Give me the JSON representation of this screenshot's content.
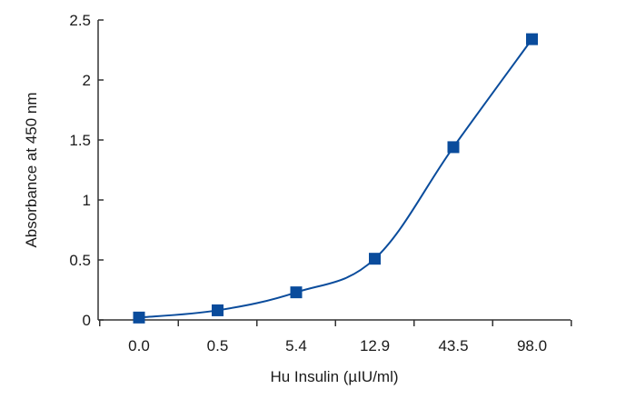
{
  "chart_data": {
    "type": "line",
    "title": "",
    "xlabel": "Hu Insulin (µIU/ml)",
    "ylabel": "Absorbance at 450 nm",
    "categories": [
      "0.0",
      "0.5",
      "5.4",
      "12.9",
      "43.5",
      "98.0"
    ],
    "series": [
      {
        "values": [
          0.02,
          0.08,
          0.23,
          0.51,
          1.44,
          2.34
        ]
      }
    ],
    "ylim": [
      0,
      2.5
    ],
    "yticks": [
      "0",
      "0.5",
      "1",
      "1.5",
      "2",
      "2.5"
    ],
    "grid": false,
    "legend": "none",
    "colors": {
      "series": "#0a4c9c",
      "axis": "#333333",
      "text": "#1a1a1a"
    },
    "marker": "square"
  }
}
